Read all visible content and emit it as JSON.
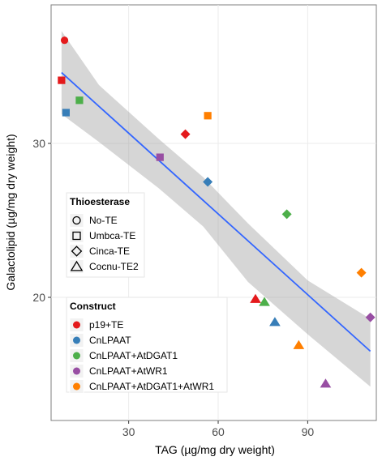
{
  "chart_data": {
    "type": "scatter",
    "title": "",
    "xlabel": "TAG (µg/mg dry weight)",
    "ylabel": "Galactolipid (µg/mg dry weight)",
    "xlim": [
      4,
      113
    ],
    "ylim": [
      12,
      39
    ],
    "x_ticks": [
      30,
      60,
      90
    ],
    "y_ticks": [
      20,
      30
    ],
    "x_tick_labels": [
      "30",
      "60",
      "90"
    ],
    "y_tick_labels": [
      "20",
      "30"
    ],
    "grid": true,
    "regression": {
      "color": "#3366FF",
      "start": [
        7.5,
        34.6
      ],
      "end": [
        111,
        16.5
      ],
      "band_top": [
        [
          7.5,
          37.3
        ],
        [
          20,
          33.8
        ],
        [
          40,
          30.3
        ],
        [
          55,
          27.8
        ],
        [
          70,
          24.8
        ],
        [
          90,
          21.1
        ],
        [
          111,
          18.6
        ]
      ],
      "band_bottom": [
        [
          7.5,
          31.9
        ],
        [
          20,
          30.1
        ],
        [
          40,
          27.1
        ],
        [
          55,
          24.6
        ],
        [
          70,
          21.0
        ],
        [
          90,
          17.6
        ],
        [
          111,
          14.2
        ]
      ]
    },
    "legend_shape": {
      "title": "Thioesterase",
      "entries": [
        {
          "label": "No-TE",
          "shape": "circle"
        },
        {
          "label": "Umbca-TE",
          "shape": "square"
        },
        {
          "label": "Cinca-TE",
          "shape": "diamond"
        },
        {
          "label": "Cocnu-TE2",
          "shape": "triangle"
        }
      ]
    },
    "legend_color": {
      "title": "Construct",
      "entries": [
        {
          "label": "p19+TE",
          "color": "#E41A1C"
        },
        {
          "label": "CnLPAAT",
          "color": "#377EB8"
        },
        {
          "label": "CnLPAAT+AtDGAT1",
          "color": "#4DAF4A"
        },
        {
          "label": "CnLPAAT+AtWR1",
          "color": "#984EA3"
        },
        {
          "label": "CnLPAAT+AtDGAT1+AtWR1",
          "color": "#FF7F00"
        }
      ]
    },
    "points": [
      {
        "x": 8.5,
        "y": 36.7,
        "construct": "p19+TE",
        "thioesterase": "No-TE"
      },
      {
        "x": 7.5,
        "y": 34.1,
        "construct": "p19+TE",
        "thioesterase": "Umbca-TE"
      },
      {
        "x": 49,
        "y": 30.6,
        "construct": "p19+TE",
        "thioesterase": "Cinca-TE"
      },
      {
        "x": 72.5,
        "y": 19.9,
        "construct": "p19+TE",
        "thioesterase": "Cocnu-TE2"
      },
      {
        "x": 9,
        "y": 32.0,
        "construct": "CnLPAAT",
        "thioesterase": "Umbca-TE"
      },
      {
        "x": 56.5,
        "y": 27.5,
        "construct": "CnLPAAT",
        "thioesterase": "Cinca-TE"
      },
      {
        "x": 79,
        "y": 18.4,
        "construct": "CnLPAAT",
        "thioesterase": "Cocnu-TE2"
      },
      {
        "x": 13.5,
        "y": 32.8,
        "construct": "CnLPAAT+AtDGAT1",
        "thioesterase": "Umbca-TE"
      },
      {
        "x": 83,
        "y": 25.4,
        "construct": "CnLPAAT+AtDGAT1",
        "thioesterase": "Cinca-TE"
      },
      {
        "x": 75.5,
        "y": 19.7,
        "construct": "CnLPAAT+AtDGAT1",
        "thioesterase": "Cocnu-TE2"
      },
      {
        "x": 40.5,
        "y": 29.1,
        "construct": "CnLPAAT+AtWR1",
        "thioesterase": "Umbca-TE"
      },
      {
        "x": 111,
        "y": 18.7,
        "construct": "CnLPAAT+AtWR1",
        "thioesterase": "Cinca-TE"
      },
      {
        "x": 96,
        "y": 14.4,
        "construct": "CnLPAAT+AtWR1",
        "thioesterase": "Cocnu-TE2"
      },
      {
        "x": 56.5,
        "y": 31.8,
        "construct": "CnLPAAT+AtDGAT1+AtWR1",
        "thioesterase": "Umbca-TE"
      },
      {
        "x": 108,
        "y": 21.6,
        "construct": "CnLPAAT+AtDGAT1+AtWR1",
        "thioesterase": "Cinca-TE"
      },
      {
        "x": 87,
        "y": 16.9,
        "construct": "CnLPAAT+AtDGAT1+AtWR1",
        "thioesterase": "Cocnu-TE2"
      }
    ]
  }
}
